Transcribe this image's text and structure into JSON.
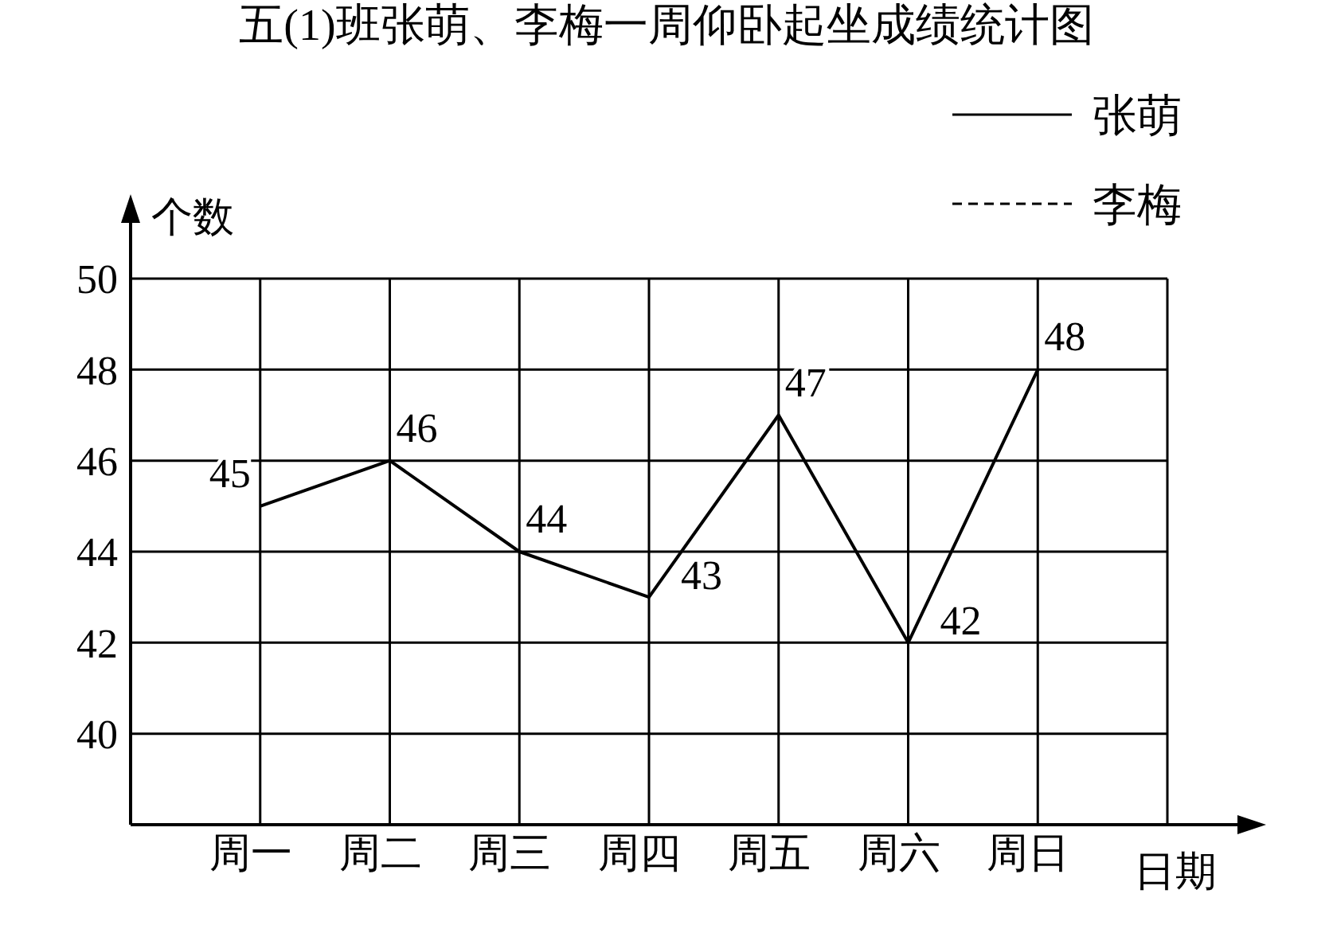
{
  "chart_data": {
    "type": "line",
    "title": "五(1)班张萌、李梅一周仰卧起坐成绩统计图",
    "xlabel": "日期",
    "ylabel": "个数",
    "categories": [
      "周一",
      "周二",
      "周三",
      "周四",
      "周五",
      "周六",
      "周日"
    ],
    "series": [
      {
        "name": "张萌",
        "color": "#000000",
        "line_style": "solid",
        "values": [
          45,
          46,
          44,
          43,
          47,
          42,
          48
        ]
      },
      {
        "name": "李梅",
        "color": "#000000",
        "line_style": "dashed",
        "values": [
          null,
          null,
          null,
          null,
          null,
          null,
          null
        ]
      }
    ],
    "ylim": [
      38,
      50
    ],
    "yticks": [
      40,
      42,
      44,
      46,
      48,
      50
    ],
    "grid": true,
    "legend": "top right",
    "data_labels": true,
    "marker": "none"
  }
}
